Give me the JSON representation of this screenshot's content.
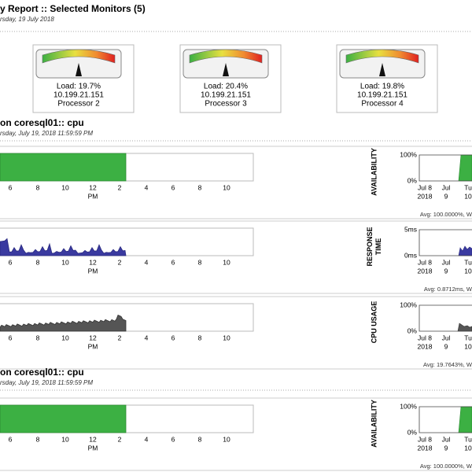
{
  "header": {
    "title": "y Report :: Selected Monitors (5)",
    "date": "rsday, 19 July 2018"
  },
  "gauges": [
    {
      "load": "Load: 19.7%",
      "ip": "10.199.21.151",
      "name": "Processor 2"
    },
    {
      "load": "Load: 20.4%",
      "ip": "10.199.21.151",
      "name": "Processor 3"
    },
    {
      "load": "Load: 19.8%",
      "ip": "10.199.21.151",
      "name": "Processor 4"
    }
  ],
  "hour_ticks": [
    "6",
    "8",
    "10",
    "12",
    "2",
    "4",
    "6",
    "8",
    "10"
  ],
  "pm": "PM",
  "mini_xticks": [
    [
      "Jul 8",
      "2018"
    ],
    [
      "Jul",
      "9"
    ],
    [
      "Tu",
      "10"
    ]
  ],
  "sections": [
    {
      "title": "on coresql01:: cpu",
      "date": "rsday, July 19, 2018 11:59:59 PM",
      "rows": [
        {
          "label": [
            "AVAILABILITY"
          ],
          "mini_yticks": [
            "100%",
            "0%"
          ],
          "summary": "Avg: 100.0000%, W"
        },
        {
          "label": [
            "RESPONSE",
            "TIME"
          ],
          "mini_yticks": [
            "5ms",
            "0ms"
          ],
          "summary": "Avg: 0.8712ms, W"
        },
        {
          "label": [
            "CPU USAGE"
          ],
          "mini_yticks": [
            "100%",
            "0%"
          ],
          "summary": "Avg: 19.7643%, W"
        }
      ]
    },
    {
      "title": "on coresql01:: cpu",
      "date": "rsday, July 19, 2018 11:59:59 PM",
      "rows": [
        {
          "label": [
            "AVAILABILITY"
          ],
          "mini_yticks": [
            "100%",
            "0%"
          ],
          "summary": "Avg: 100.0000%, W"
        }
      ]
    }
  ]
}
